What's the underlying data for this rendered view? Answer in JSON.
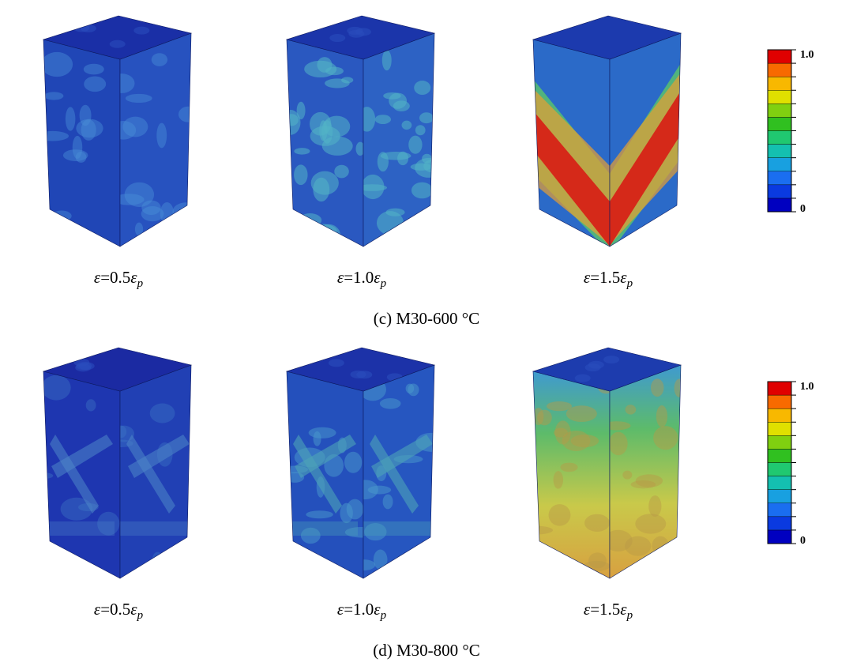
{
  "panels": [
    {
      "caption": "(c) M30-600 °C",
      "views": [
        {
          "symbol": "ε",
          "equals": "=0.5",
          "var": "ε",
          "sub": "p"
        },
        {
          "symbol": "ε",
          "equals": "=1.0",
          "var": "ε",
          "sub": "p"
        },
        {
          "symbol": "ε",
          "equals": "=1.5",
          "var": "ε",
          "sub": "p"
        }
      ],
      "colorbar": {
        "max": "1.0",
        "min": "0"
      }
    },
    {
      "caption": "(d) M30-800 °C",
      "views": [
        {
          "symbol": "ε",
          "equals": "=0.5",
          "var": "ε",
          "sub": "p"
        },
        {
          "symbol": "ε",
          "equals": "=1.0",
          "var": "ε",
          "sub": "p"
        },
        {
          "symbol": "ε",
          "equals": "=1.5",
          "var": "ε",
          "sub": "p"
        }
      ],
      "colorbar": {
        "max": "1.0",
        "min": "0"
      }
    }
  ]
}
